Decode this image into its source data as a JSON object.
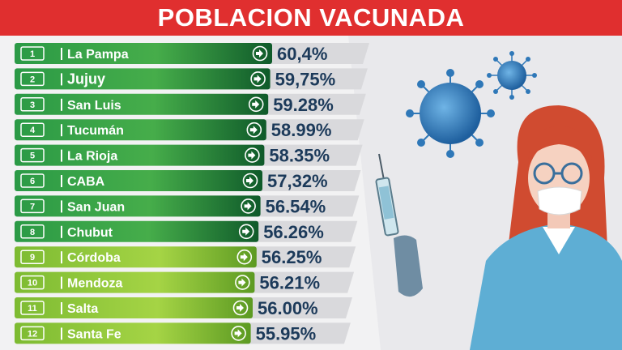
{
  "title": "POBLACION VACUNADA",
  "colors": {
    "title_bg": "#e02f2f",
    "dark_green": "#1f8a3c",
    "light_green": "#8cc63f",
    "value_text": "#1c3a5a",
    "value_panel": "#d9d9dc"
  },
  "icons": [
    "arrow-right-circle-icon",
    "virus-icon",
    "syringe-icon",
    "doctor-illustration"
  ],
  "chart_data": {
    "type": "bar",
    "categories": [
      "La Pampa",
      "Jujuy",
      "San Luis",
      "Tucumán",
      "La Rioja",
      "CABA",
      "San Juan",
      "Chubut",
      "Córdoba",
      "Mendoza",
      "Salta",
      "Santa Fe"
    ],
    "ranks": [
      "1",
      "2",
      "3",
      "4",
      "5",
      "6",
      "7",
      "8",
      "9",
      "10",
      "11",
      "12"
    ],
    "values": [
      60.4,
      59.75,
      59.28,
      58.99,
      58.35,
      57.32,
      56.54,
      56.26,
      56.25,
      56.21,
      56.0,
      55.95
    ],
    "value_labels": [
      "60,4%",
      "59,75%",
      "59.28%",
      "58.99%",
      "58.35%",
      "57,32%",
      "56.54%",
      "56.26%",
      "56.25%",
      "56.21%",
      "56.00%",
      "55.95%"
    ],
    "row_colors": [
      "dark",
      "dark",
      "dark",
      "dark",
      "dark",
      "dark",
      "dark",
      "dark",
      "light",
      "light",
      "light",
      "light"
    ]
  }
}
